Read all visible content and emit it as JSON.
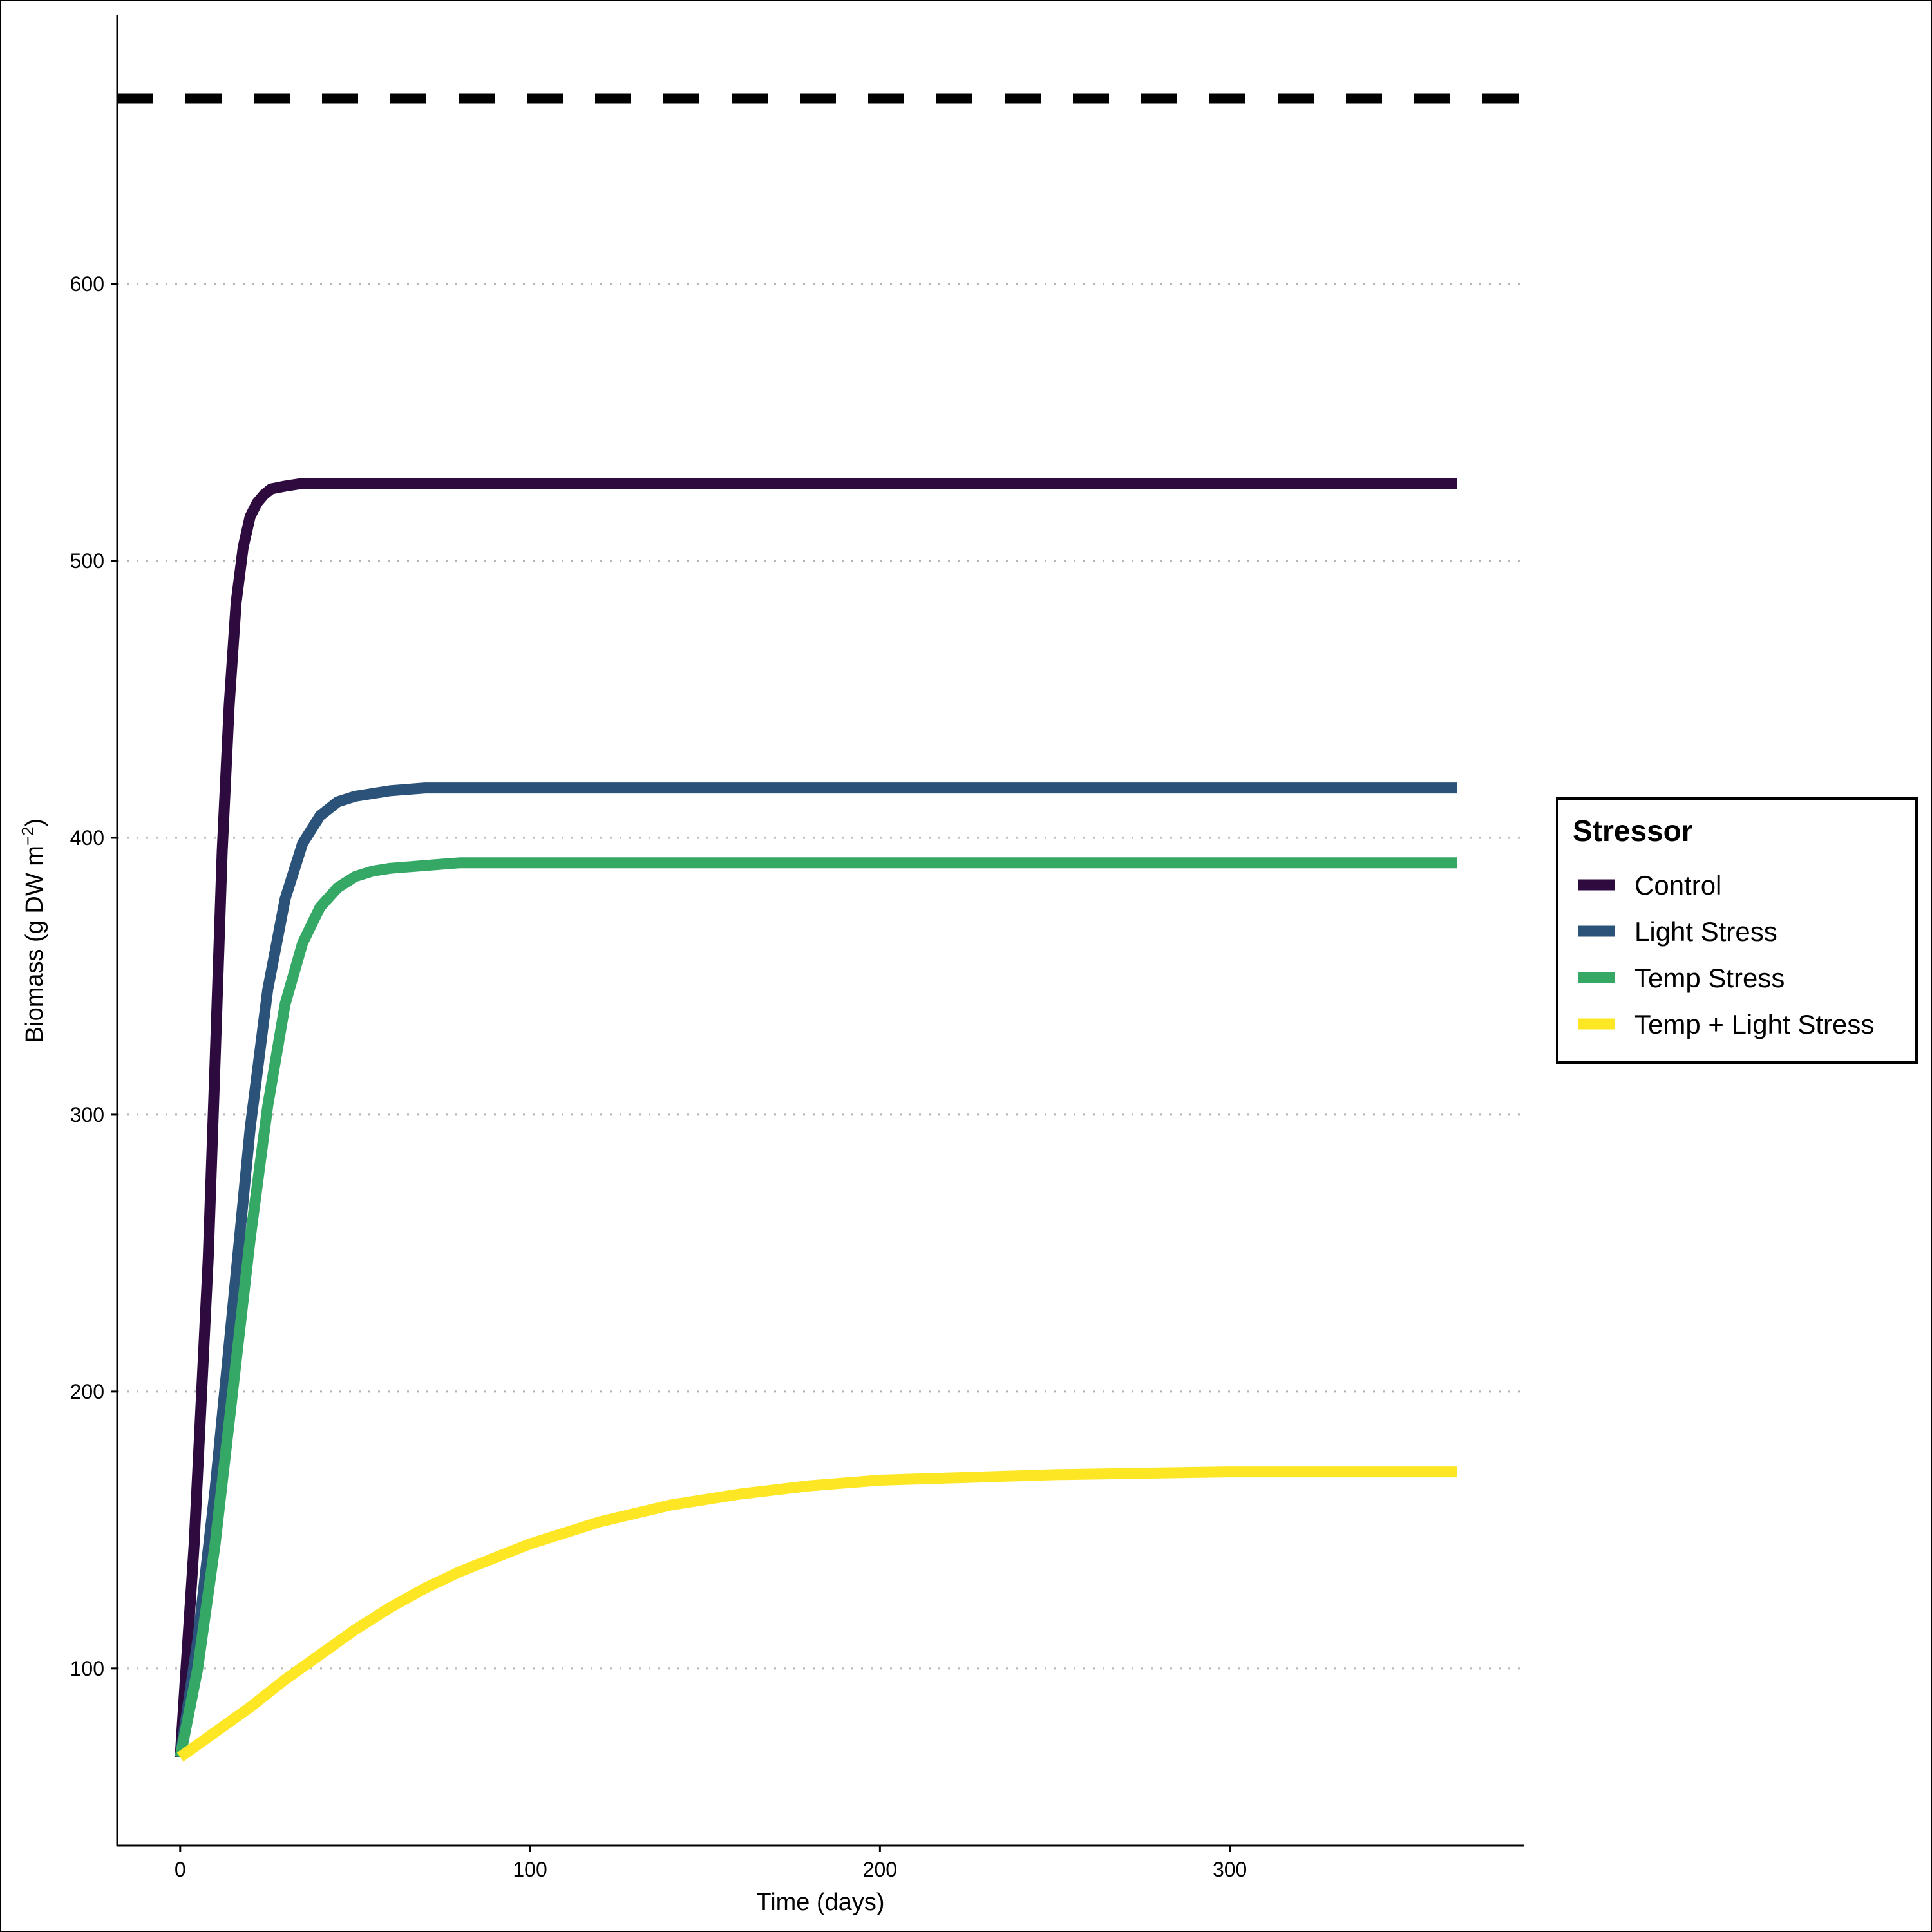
{
  "chart_data": {
    "type": "line",
    "xlabel": "Time (days)",
    "ylabel": "Biomass (g DW m",
    "ylabel_sup": "−2",
    "ylabel_suffix": ")",
    "xlim": [
      -18,
      384
    ],
    "ylim": [
      36,
      697
    ],
    "x_ticks": [
      0,
      100,
      200,
      300
    ],
    "x_tick_labels": [
      "0",
      "100",
      "200",
      "300"
    ],
    "y_ticks": [
      100,
      200,
      300,
      400,
      500,
      600
    ],
    "y_tick_labels": [
      "100",
      "200",
      "300",
      "400",
      "500",
      "600"
    ],
    "grid": "horizontal dotted at y ticks",
    "reference_line": {
      "y": 667,
      "style": "dashed",
      "color": "#000000"
    },
    "legend": {
      "title": "Stressor",
      "position": "right"
    },
    "series": [
      {
        "name": "Control",
        "color": "#2D0B3F",
        "x": [
          0,
          4,
          8,
          10,
          12,
          14,
          16,
          18,
          20,
          22,
          24,
          26,
          30,
          35,
          40,
          50,
          100,
          200,
          300,
          365
        ],
        "y": [
          68,
          145,
          248,
          320,
          395,
          448,
          485,
          505,
          516,
          521,
          524,
          526,
          527,
          528,
          528,
          528,
          528,
          528,
          528,
          528
        ]
      },
      {
        "name": "Light Stress",
        "color": "#2B5279",
        "x": [
          0,
          5,
          10,
          15,
          20,
          25,
          30,
          35,
          40,
          45,
          50,
          60,
          70,
          80,
          100,
          200,
          300,
          365
        ],
        "y": [
          68,
          110,
          165,
          230,
          295,
          345,
          378,
          398,
          408,
          413,
          415,
          417,
          418,
          418,
          418,
          418,
          418,
          418
        ]
      },
      {
        "name": "Temp Stress",
        "color": "#35A865",
        "x": [
          0,
          5,
          10,
          15,
          20,
          25,
          30,
          35,
          40,
          45,
          50,
          55,
          60,
          70,
          80,
          100,
          200,
          300,
          365
        ],
        "y": [
          68,
          100,
          145,
          200,
          255,
          303,
          340,
          362,
          375,
          382,
          386,
          388,
          389,
          390,
          391,
          391,
          391,
          391,
          391
        ]
      },
      {
        "name": "Temp + Light Stress",
        "color": "#FDE725",
        "x": [
          0,
          10,
          20,
          30,
          40,
          50,
          60,
          70,
          80,
          90,
          100,
          120,
          140,
          160,
          180,
          200,
          250,
          300,
          365
        ],
        "y": [
          68,
          77,
          86,
          96,
          105,
          114,
          122,
          129,
          135,
          140,
          145,
          153,
          159,
          163,
          166,
          168,
          170,
          171,
          171
        ]
      }
    ]
  }
}
